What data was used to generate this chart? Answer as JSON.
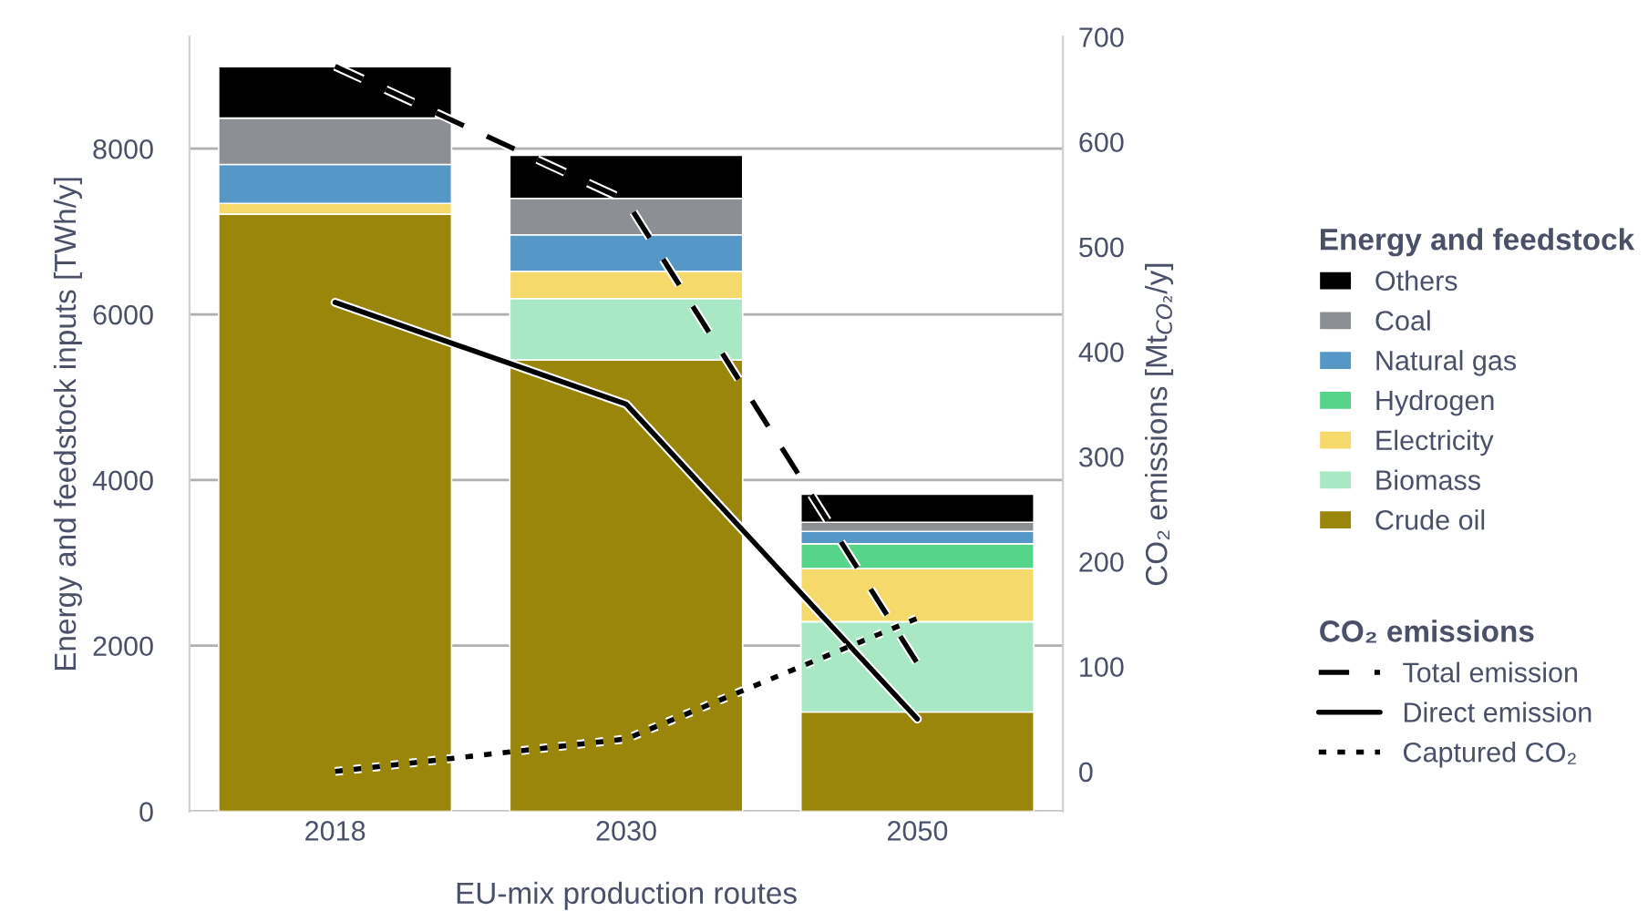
{
  "chart_data": {
    "type": "bar",
    "stacked": true,
    "categories": [
      "2018",
      "2030",
      "2050"
    ],
    "xlabel": "EU-mix production routes",
    "ylabel": "Energy and feedstock inputs [TWh/y]",
    "y2label": "CO₂ emissions [Mt$_{CO₂}$/y]",
    "legend_title": [
      "Energy and feedstock",
      "CO₂ emissions"
    ],
    "ylim": [
      0,
      9350
    ],
    "yticks": [
      0,
      2000,
      4000,
      6000,
      8000
    ],
    "y2lim": [
      -38,
      700
    ],
    "y2ticks": [
      0,
      100,
      200,
      300,
      400,
      500,
      600,
      700
    ],
    "grid": "y",
    "legend": "right",
    "series": [
      {
        "name": "Crude oil",
        "color": "#9b860c",
        "values": [
          7210,
          5450,
          1200
        ]
      },
      {
        "name": "Biomass",
        "color": "#a8e8c4",
        "values": [
          0,
          740,
          1090
        ]
      },
      {
        "name": "Electricity",
        "color": "#f5d96b",
        "values": [
          130,
          330,
          640
        ]
      },
      {
        "name": "Hydrogen",
        "color": "#55d48a",
        "values": [
          0,
          0,
          300
        ]
      },
      {
        "name": "Natural gas",
        "color": "#5598c8",
        "values": [
          470,
          440,
          150
        ]
      },
      {
        "name": "Coal",
        "color": "#8c8f93",
        "values": [
          560,
          440,
          110
        ]
      },
      {
        "name": "Others",
        "color": "#000000",
        "values": [
          620,
          520,
          340
        ]
      },
      {
        "name": "Total emission",
        "type": "line",
        "axis": "y2",
        "color": "#000000",
        "line_style": "dashed",
        "values": [
          672,
          544,
          103
        ]
      },
      {
        "name": "Direct emission",
        "type": "line",
        "axis": "y2",
        "color": "#000000",
        "line_style": "solid",
        "values": [
          447,
          350,
          50
        ]
      },
      {
        "name": "Captured CO₂",
        "type": "line",
        "axis": "y2",
        "color": "#000000",
        "line_style": "dotted",
        "values": [
          0,
          31,
          146
        ]
      }
    ]
  }
}
